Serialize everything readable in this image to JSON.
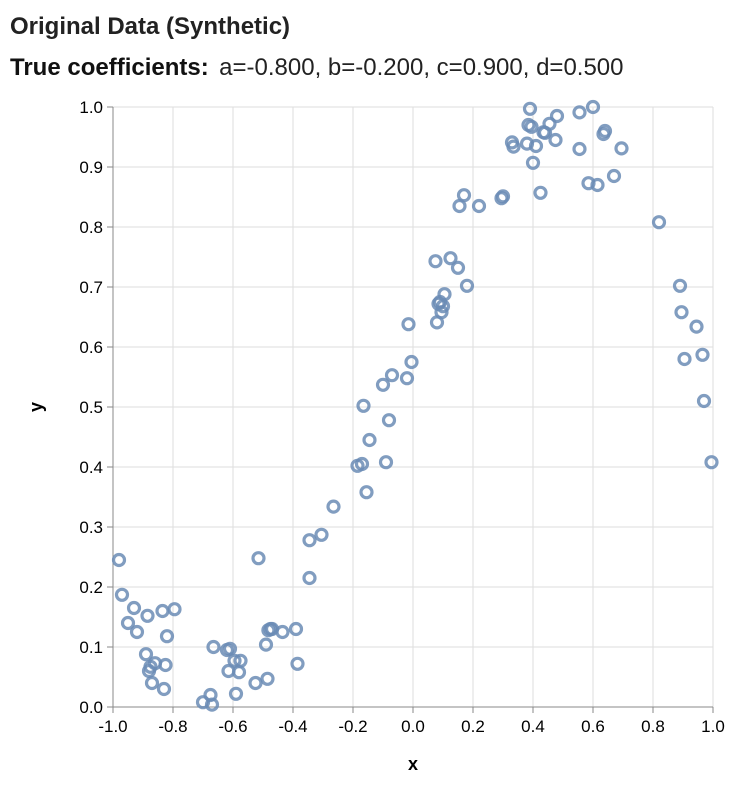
{
  "chart_data": {
    "type": "scatter",
    "title": "Original Data (Synthetic)",
    "subtitle_label": "True coefficients:",
    "subtitle_text": "a=-0.800, b=-0.200, c=0.900, d=0.500",
    "xlabel": "x",
    "ylabel": "y",
    "xlim": [
      -1.0,
      1.0
    ],
    "ylim": [
      0.0,
      1.0
    ],
    "x_ticks": [
      -1.0,
      -0.8,
      -0.6,
      -0.4,
      -0.2,
      0.0,
      0.2,
      0.4,
      0.6,
      0.8,
      1.0
    ],
    "y_ticks": [
      0.0,
      0.1,
      0.2,
      0.3,
      0.4,
      0.5,
      0.6,
      0.7,
      0.8,
      0.9,
      1.0
    ],
    "x_tick_labels": [
      "-1.0",
      "-0.8",
      "-0.6",
      "-0.4",
      "-0.2",
      "0.0",
      "0.2",
      "0.4",
      "0.6",
      "0.8",
      "1.0"
    ],
    "y_tick_labels": [
      "0.0",
      "0.1",
      "0.2",
      "0.3",
      "0.4",
      "0.5",
      "0.6",
      "0.7",
      "0.8",
      "0.9",
      "1.0"
    ],
    "grid": true,
    "marker": "hollow-circle",
    "point_color": "#6b8cb5",
    "points": [
      {
        "x": -0.98,
        "y": 0.245
      },
      {
        "x": -0.97,
        "y": 0.187
      },
      {
        "x": -0.95,
        "y": 0.14
      },
      {
        "x": -0.93,
        "y": 0.165
      },
      {
        "x": -0.92,
        "y": 0.125
      },
      {
        "x": -0.89,
        "y": 0.088
      },
      {
        "x": -0.885,
        "y": 0.152
      },
      {
        "x": -0.88,
        "y": 0.06
      },
      {
        "x": -0.875,
        "y": 0.067
      },
      {
        "x": -0.87,
        "y": 0.04
      },
      {
        "x": -0.86,
        "y": 0.073
      },
      {
        "x": -0.835,
        "y": 0.16
      },
      {
        "x": -0.83,
        "y": 0.03
      },
      {
        "x": -0.825,
        "y": 0.07
      },
      {
        "x": -0.82,
        "y": 0.118
      },
      {
        "x": -0.795,
        "y": 0.163
      },
      {
        "x": -0.7,
        "y": 0.008
      },
      {
        "x": -0.675,
        "y": 0.02
      },
      {
        "x": -0.67,
        "y": 0.004
      },
      {
        "x": -0.665,
        "y": 0.1
      },
      {
        "x": -0.62,
        "y": 0.095
      },
      {
        "x": -0.615,
        "y": 0.06
      },
      {
        "x": -0.61,
        "y": 0.097
      },
      {
        "x": -0.595,
        "y": 0.077
      },
      {
        "x": -0.59,
        "y": 0.022
      },
      {
        "x": -0.58,
        "y": 0.058
      },
      {
        "x": -0.575,
        "y": 0.077
      },
      {
        "x": -0.525,
        "y": 0.04
      },
      {
        "x": -0.515,
        "y": 0.248
      },
      {
        "x": -0.49,
        "y": 0.104
      },
      {
        "x": -0.485,
        "y": 0.047
      },
      {
        "x": -0.482,
        "y": 0.128
      },
      {
        "x": -0.475,
        "y": 0.13
      },
      {
        "x": -0.47,
        "y": 0.13
      },
      {
        "x": -0.435,
        "y": 0.125
      },
      {
        "x": -0.39,
        "y": 0.13
      },
      {
        "x": -0.385,
        "y": 0.072
      },
      {
        "x": -0.345,
        "y": 0.215
      },
      {
        "x": -0.345,
        "y": 0.278
      },
      {
        "x": -0.305,
        "y": 0.287
      },
      {
        "x": -0.265,
        "y": 0.334
      },
      {
        "x": -0.185,
        "y": 0.402
      },
      {
        "x": -0.17,
        "y": 0.405
      },
      {
        "x": -0.165,
        "y": 0.502
      },
      {
        "x": -0.155,
        "y": 0.358
      },
      {
        "x": -0.145,
        "y": 0.445
      },
      {
        "x": -0.1,
        "y": 0.537
      },
      {
        "x": -0.09,
        "y": 0.408
      },
      {
        "x": -0.08,
        "y": 0.478
      },
      {
        "x": -0.07,
        "y": 0.553
      },
      {
        "x": -0.02,
        "y": 0.548
      },
      {
        "x": -0.015,
        "y": 0.638
      },
      {
        "x": -0.005,
        "y": 0.575
      },
      {
        "x": 0.075,
        "y": 0.743
      },
      {
        "x": 0.08,
        "y": 0.641
      },
      {
        "x": 0.085,
        "y": 0.672
      },
      {
        "x": 0.09,
        "y": 0.675
      },
      {
        "x": 0.095,
        "y": 0.658
      },
      {
        "x": 0.1,
        "y": 0.668
      },
      {
        "x": 0.105,
        "y": 0.688
      },
      {
        "x": 0.125,
        "y": 0.748
      },
      {
        "x": 0.15,
        "y": 0.732
      },
      {
        "x": 0.155,
        "y": 0.835
      },
      {
        "x": 0.17,
        "y": 0.853
      },
      {
        "x": 0.18,
        "y": 0.702
      },
      {
        "x": 0.22,
        "y": 0.835
      },
      {
        "x": 0.295,
        "y": 0.848
      },
      {
        "x": 0.3,
        "y": 0.851
      },
      {
        "x": 0.33,
        "y": 0.941
      },
      {
        "x": 0.335,
        "y": 0.934
      },
      {
        "x": 0.38,
        "y": 0.939
      },
      {
        "x": 0.385,
        "y": 0.97
      },
      {
        "x": 0.39,
        "y": 0.997
      },
      {
        "x": 0.395,
        "y": 0.967
      },
      {
        "x": 0.4,
        "y": 0.907
      },
      {
        "x": 0.41,
        "y": 0.935
      },
      {
        "x": 0.425,
        "y": 0.857
      },
      {
        "x": 0.435,
        "y": 0.958
      },
      {
        "x": 0.44,
        "y": 0.957
      },
      {
        "x": 0.455,
        "y": 0.972
      },
      {
        "x": 0.475,
        "y": 0.945
      },
      {
        "x": 0.48,
        "y": 0.985
      },
      {
        "x": 0.555,
        "y": 0.991
      },
      {
        "x": 0.555,
        "y": 0.93
      },
      {
        "x": 0.585,
        "y": 0.873
      },
      {
        "x": 0.6,
        "y": 1.0
      },
      {
        "x": 0.615,
        "y": 0.87
      },
      {
        "x": 0.635,
        "y": 0.955
      },
      {
        "x": 0.64,
        "y": 0.96
      },
      {
        "x": 0.67,
        "y": 0.885
      },
      {
        "x": 0.695,
        "y": 0.931
      },
      {
        "x": 0.82,
        "y": 0.808
      },
      {
        "x": 0.89,
        "y": 0.702
      },
      {
        "x": 0.895,
        "y": 0.658
      },
      {
        "x": 0.905,
        "y": 0.58
      },
      {
        "x": 0.945,
        "y": 0.634
      },
      {
        "x": 0.965,
        "y": 0.587
      },
      {
        "x": 0.97,
        "y": 0.51
      },
      {
        "x": 0.995,
        "y": 0.408
      }
    ]
  }
}
